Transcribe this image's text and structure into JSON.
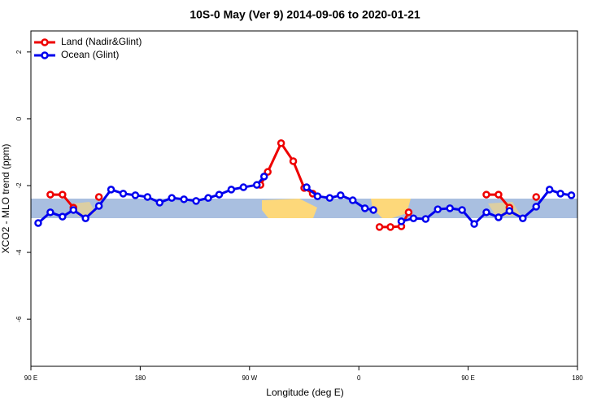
{
  "chart_data": {
    "type": "line",
    "title": "10S-0 May (Ver 9)   2014-09-06 to 2020-01-21",
    "x_label": "Longitude (deg E)",
    "y_label": "XCO2 - MLO trend (ppm)",
    "xlim": [
      90,
      540
    ],
    "ylim": [
      -7.41,
      2.63
    ],
    "xticks": [
      {
        "value": 90,
        "label": "90 E"
      },
      180,
      {
        "value": 270,
        "label": "90 W"
      },
      {
        "value": 360,
        "label": "0"
      },
      {
        "value": 450,
        "label": "90 E"
      },
      {
        "value": 540,
        "label": "180"
      }
    ],
    "yticks": [
      2,
      0,
      -2,
      -4,
      -6
    ],
    "legend": "top-left",
    "series": [
      {
        "name": "Land (Nadir&Glint)",
        "color": "#ee0000",
        "x": [
          106,
          116,
          125,
          null,
          146,
          null,
          279,
          285,
          296,
          306,
          315,
          322,
          null,
          377,
          386,
          395,
          401,
          null,
          465,
          475,
          484,
          null,
          506
        ],
        "values": [
          -2.27,
          -2.27,
          -2.66,
          null,
          -2.34,
          null,
          -1.98,
          -1.59,
          -0.73,
          -1.27,
          -2.07,
          -2.24,
          null,
          -3.24,
          -3.24,
          -3.22,
          -2.8,
          null,
          -2.27,
          -2.27,
          -2.66,
          null,
          -2.34
        ]
      },
      {
        "name": "Ocean (Glint)",
        "color": "#0000ee",
        "x": [
          96,
          106,
          116,
          125,
          135,
          146,
          156,
          166,
          176,
          186,
          196,
          206,
          216,
          226,
          236,
          245,
          255,
          265,
          276,
          282,
          null,
          317,
          326,
          336,
          345,
          355,
          365,
          372,
          null,
          395,
          405,
          415,
          425,
          435,
          445,
          455,
          465,
          475,
          484,
          495,
          506,
          517,
          526,
          535
        ],
        "values": [
          -3.12,
          -2.8,
          -2.93,
          -2.73,
          -2.98,
          -2.61,
          -2.12,
          -2.24,
          -2.29,
          -2.34,
          -2.51,
          -2.37,
          -2.41,
          -2.46,
          -2.37,
          -2.27,
          -2.12,
          -2.05,
          -1.98,
          -1.73,
          null,
          -2.05,
          -2.32,
          -2.37,
          -2.29,
          -2.44,
          -2.68,
          -2.73,
          null,
          -3.07,
          -2.98,
          -3.0,
          -2.71,
          -2.68,
          -2.73,
          -3.15,
          -2.8,
          -2.95,
          -2.76,
          -2.98,
          -2.63,
          -2.12,
          -2.24,
          -2.29
        ]
      }
    ]
  }
}
